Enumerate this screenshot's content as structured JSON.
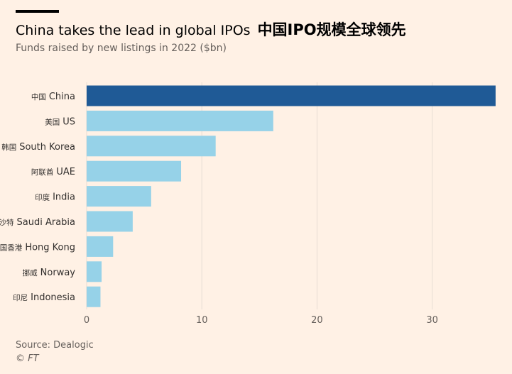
{
  "header": {
    "title_en": "China takes the lead in global IPOs",
    "title_cn": "中国IPO规模全球领先",
    "subtitle": "Funds raised by new listings in 2022 ($bn)"
  },
  "footer": {
    "source": "Source: Dealogic",
    "credit": "© FT"
  },
  "colors": {
    "highlight": "#1f5a96",
    "bar": "#96d2e8",
    "grid": "#e7ddd4",
    "axis_text": "#66605c"
  },
  "chart_data": {
    "type": "bar",
    "orientation": "horizontal",
    "title": "China takes the lead in global IPOs 中国IPO规模全球领先",
    "subtitle": "Funds raised by new listings in 2022 ($bn)",
    "categories": [
      {
        "cn": "中国",
        "en": "China"
      },
      {
        "cn": "美国",
        "en": "US"
      },
      {
        "cn": "韩国",
        "en": "South Korea"
      },
      {
        "cn": "阿联酋",
        "en": "UAE"
      },
      {
        "cn": "印度",
        "en": "India"
      },
      {
        "cn": "沙特",
        "en": "Saudi Arabia"
      },
      {
        "cn": "中国香港",
        "en": "Hong Kong"
      },
      {
        "cn": "挪威",
        "en": "Norway"
      },
      {
        "cn": "印尼",
        "en": "Indonesia"
      }
    ],
    "values": [
      35.5,
      16.2,
      11.2,
      8.2,
      5.6,
      4.0,
      2.3,
      1.3,
      1.2
    ],
    "highlight_index": 0,
    "xlim": [
      0,
      36
    ],
    "xticks": [
      0,
      10,
      20,
      30
    ],
    "grid": true
  }
}
